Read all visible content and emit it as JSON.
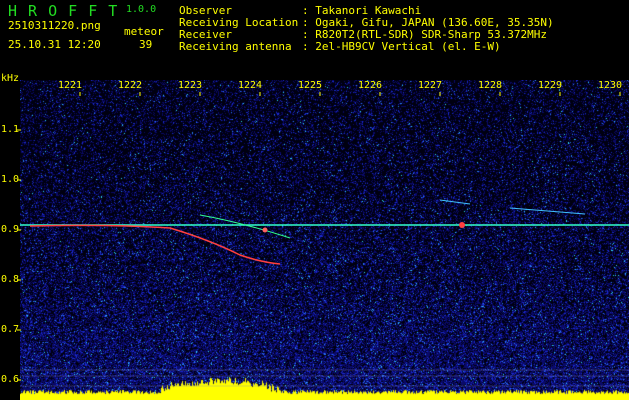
{
  "header": {
    "app_title": "H R O F F T",
    "version": "1.0.0",
    "filename": "2510311220.png",
    "datetime": "25.10.31 12:20",
    "meteor_label": "meteor",
    "meteor_count": "39",
    "info": [
      {
        "label": "Observer",
        "value": ": Takanori Kawachi"
      },
      {
        "label": "Receiving Location",
        "value": ": Ogaki, Gifu, JAPAN (136.60E, 35.35N)"
      },
      {
        "label": "Receiver",
        "value": ": R820T2(RTL-SDR) SDR-Sharp 53.372MHz"
      },
      {
        "label": "Receiving antenna",
        "value": ": 2el-HB9CV Vertical (el. E-W)"
      }
    ]
  },
  "spectrogram": {
    "y_unit": "kHz",
    "y_ticks": [
      "1.1",
      "1.0",
      "0.9",
      "0.8",
      "0.7",
      "0.6"
    ],
    "x_ticks": [
      "1221",
      "1222",
      "1223",
      "1224",
      "1225",
      "1226",
      "1227",
      "1228",
      "1229",
      "1230"
    ],
    "carrier_khz": 0.91,
    "colors": {
      "background": "#000000",
      "noise": "#1a1aa0",
      "text": "#ffff00",
      "title": "#22dd22",
      "carrier": "#33ffcc",
      "level": "#ffff00"
    }
  }
}
